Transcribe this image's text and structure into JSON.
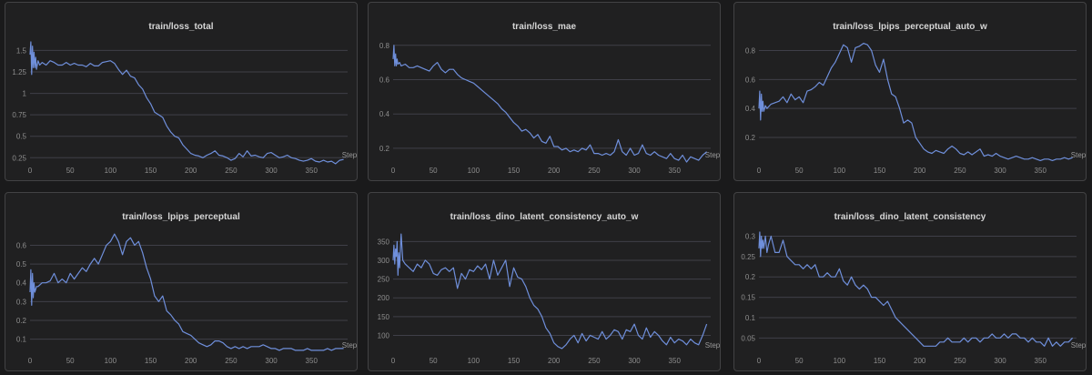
{
  "series_color": "#6f8fdb",
  "chart_data": [
    {
      "type": "line",
      "title": "train/loss_total",
      "xlabel": "Step",
      "xlim": [
        0,
        395
      ],
      "ylim": [
        0.2,
        1.6
      ],
      "xticks": [
        0,
        50,
        100,
        150,
        200,
        250,
        300,
        350
      ],
      "yticks": [
        0.25,
        0.5,
        0.75,
        1,
        1.25,
        1.5
      ],
      "ytick_labels": [
        "0.25",
        "0.5",
        "0.75",
        "1",
        "1.25",
        "1.5"
      ],
      "grid": true,
      "x": [
        0,
        1,
        2,
        3,
        4,
        5,
        6,
        7,
        8,
        10,
        12,
        15,
        20,
        25,
        30,
        35,
        40,
        45,
        50,
        55,
        60,
        65,
        70,
        75,
        80,
        85,
        90,
        95,
        100,
        105,
        110,
        115,
        120,
        125,
        130,
        135,
        140,
        145,
        150,
        155,
        160,
        165,
        170,
        175,
        180,
        185,
        190,
        195,
        200,
        205,
        210,
        215,
        220,
        225,
        230,
        235,
        240,
        245,
        250,
        255,
        260,
        265,
        270,
        275,
        280,
        285,
        290,
        295,
        300,
        305,
        310,
        315,
        320,
        325,
        330,
        335,
        340,
        345,
        350,
        355,
        360,
        365,
        370,
        375,
        380,
        385,
        390
      ],
      "y": [
        1.45,
        1.6,
        1.22,
        1.55,
        1.3,
        1.48,
        1.3,
        1.42,
        1.28,
        1.38,
        1.33,
        1.36,
        1.33,
        1.38,
        1.36,
        1.33,
        1.33,
        1.36,
        1.33,
        1.35,
        1.33,
        1.33,
        1.31,
        1.35,
        1.32,
        1.32,
        1.36,
        1.37,
        1.38,
        1.35,
        1.28,
        1.22,
        1.27,
        1.2,
        1.18,
        1.1,
        1.05,
        0.95,
        0.88,
        0.78,
        0.75,
        0.72,
        0.62,
        0.55,
        0.5,
        0.48,
        0.4,
        0.35,
        0.3,
        0.28,
        0.27,
        0.25,
        0.28,
        0.3,
        0.33,
        0.28,
        0.27,
        0.25,
        0.22,
        0.24,
        0.3,
        0.26,
        0.33,
        0.27,
        0.28,
        0.26,
        0.25,
        0.3,
        0.31,
        0.28,
        0.25,
        0.26,
        0.28,
        0.25,
        0.24,
        0.22,
        0.21,
        0.22,
        0.24,
        0.21,
        0.2,
        0.22,
        0.2,
        0.21,
        0.18,
        0.22,
        0.23
      ]
    },
    {
      "type": "line",
      "title": "train/loss_mae",
      "xlabel": "Step",
      "xlim": [
        0,
        395
      ],
      "ylim": [
        0.12,
        0.82
      ],
      "xticks": [
        0,
        50,
        100,
        150,
        200,
        250,
        300,
        350
      ],
      "yticks": [
        0.2,
        0.4,
        0.6,
        0.8
      ],
      "ytick_labels": [
        "0.2",
        "0.4",
        "0.6",
        "0.8"
      ],
      "grid": true,
      "x": [
        0,
        1,
        2,
        3,
        4,
        5,
        6,
        8,
        10,
        15,
        20,
        25,
        30,
        35,
        40,
        45,
        50,
        55,
        60,
        65,
        70,
        75,
        80,
        85,
        90,
        95,
        100,
        105,
        110,
        115,
        120,
        125,
        130,
        135,
        140,
        145,
        150,
        155,
        160,
        165,
        170,
        175,
        180,
        185,
        190,
        195,
        200,
        205,
        210,
        215,
        220,
        225,
        230,
        235,
        240,
        245,
        250,
        255,
        260,
        265,
        270,
        275,
        280,
        285,
        290,
        295,
        300,
        305,
        310,
        315,
        320,
        325,
        330,
        335,
        340,
        345,
        350,
        355,
        360,
        365,
        370,
        375,
        380,
        385,
        390
      ],
      "y": [
        0.72,
        0.8,
        0.68,
        0.75,
        0.68,
        0.72,
        0.69,
        0.7,
        0.68,
        0.69,
        0.67,
        0.67,
        0.68,
        0.67,
        0.66,
        0.65,
        0.68,
        0.7,
        0.66,
        0.64,
        0.66,
        0.66,
        0.63,
        0.61,
        0.6,
        0.59,
        0.58,
        0.56,
        0.54,
        0.52,
        0.5,
        0.48,
        0.46,
        0.43,
        0.41,
        0.38,
        0.35,
        0.33,
        0.3,
        0.31,
        0.29,
        0.26,
        0.28,
        0.24,
        0.23,
        0.27,
        0.21,
        0.21,
        0.19,
        0.2,
        0.18,
        0.19,
        0.18,
        0.2,
        0.19,
        0.22,
        0.17,
        0.17,
        0.16,
        0.17,
        0.16,
        0.18,
        0.25,
        0.18,
        0.16,
        0.2,
        0.16,
        0.17,
        0.22,
        0.17,
        0.16,
        0.18,
        0.16,
        0.15,
        0.14,
        0.17,
        0.14,
        0.13,
        0.16,
        0.12,
        0.15,
        0.14,
        0.13,
        0.16,
        0.18
      ]
    },
    {
      "type": "line",
      "title": "train/loss_lpips_perceptual_auto_w",
      "xlabel": "Step",
      "xlim": [
        0,
        395
      ],
      "ylim": [
        0.03,
        0.86
      ],
      "xticks": [
        0,
        50,
        100,
        150,
        200,
        250,
        300,
        350
      ],
      "yticks": [
        0.2,
        0.4,
        0.6,
        0.8
      ],
      "ytick_labels": [
        "0.2",
        "0.4",
        "0.6",
        "0.8"
      ],
      "grid": true,
      "x": [
        0,
        1,
        2,
        3,
        4,
        5,
        6,
        8,
        10,
        15,
        20,
        25,
        30,
        35,
        40,
        45,
        50,
        55,
        60,
        65,
        70,
        75,
        80,
        85,
        90,
        95,
        100,
        105,
        110,
        115,
        120,
        125,
        130,
        135,
        140,
        145,
        150,
        155,
        160,
        165,
        170,
        175,
        180,
        185,
        190,
        195,
        200,
        205,
        210,
        215,
        220,
        225,
        230,
        235,
        240,
        245,
        250,
        255,
        260,
        265,
        270,
        275,
        280,
        285,
        290,
        295,
        300,
        305,
        310,
        315,
        320,
        325,
        330,
        335,
        340,
        345,
        350,
        355,
        360,
        365,
        370,
        375,
        380,
        385,
        390
      ],
      "y": [
        0.4,
        0.52,
        0.32,
        0.5,
        0.38,
        0.45,
        0.38,
        0.42,
        0.4,
        0.43,
        0.44,
        0.45,
        0.48,
        0.44,
        0.5,
        0.46,
        0.48,
        0.44,
        0.52,
        0.53,
        0.55,
        0.58,
        0.56,
        0.62,
        0.68,
        0.72,
        0.78,
        0.84,
        0.82,
        0.72,
        0.82,
        0.83,
        0.85,
        0.84,
        0.8,
        0.7,
        0.65,
        0.74,
        0.6,
        0.5,
        0.48,
        0.4,
        0.3,
        0.32,
        0.3,
        0.2,
        0.16,
        0.12,
        0.1,
        0.09,
        0.11,
        0.1,
        0.09,
        0.12,
        0.14,
        0.12,
        0.09,
        0.08,
        0.1,
        0.08,
        0.1,
        0.12,
        0.07,
        0.08,
        0.07,
        0.09,
        0.07,
        0.06,
        0.05,
        0.06,
        0.07,
        0.06,
        0.05,
        0.05,
        0.06,
        0.05,
        0.04,
        0.05,
        0.05,
        0.04,
        0.05,
        0.05,
        0.06,
        0.05,
        0.06
      ]
    },
    {
      "type": "line",
      "title": "train/loss_lpips_perceptual",
      "xlabel": "Step",
      "xlim": [
        0,
        395
      ],
      "ylim": [
        0.03,
        0.67
      ],
      "xticks": [
        0,
        50,
        100,
        150,
        200,
        250,
        300,
        350
      ],
      "yticks": [
        0.1,
        0.2,
        0.3,
        0.4,
        0.5,
        0.6
      ],
      "ytick_labels": [
        "0.1",
        "0.2",
        "0.3",
        "0.4",
        "0.5",
        "0.6"
      ],
      "grid": true,
      "x": [
        0,
        1,
        2,
        3,
        4,
        5,
        6,
        8,
        10,
        15,
        20,
        25,
        30,
        35,
        40,
        45,
        50,
        55,
        60,
        65,
        70,
        75,
        80,
        85,
        90,
        95,
        100,
        105,
        110,
        115,
        120,
        125,
        130,
        135,
        140,
        145,
        150,
        155,
        160,
        165,
        170,
        175,
        180,
        185,
        190,
        195,
        200,
        205,
        210,
        215,
        220,
        225,
        230,
        235,
        240,
        245,
        250,
        255,
        260,
        265,
        270,
        275,
        280,
        285,
        290,
        295,
        300,
        305,
        310,
        315,
        320,
        325,
        330,
        335,
        340,
        345,
        350,
        355,
        360,
        365,
        370,
        375,
        380,
        385,
        390
      ],
      "y": [
        0.35,
        0.47,
        0.28,
        0.45,
        0.32,
        0.4,
        0.35,
        0.38,
        0.38,
        0.4,
        0.4,
        0.41,
        0.45,
        0.4,
        0.42,
        0.4,
        0.45,
        0.42,
        0.45,
        0.48,
        0.46,
        0.5,
        0.53,
        0.5,
        0.55,
        0.6,
        0.62,
        0.66,
        0.62,
        0.55,
        0.62,
        0.64,
        0.6,
        0.62,
        0.56,
        0.48,
        0.42,
        0.33,
        0.3,
        0.33,
        0.25,
        0.23,
        0.2,
        0.18,
        0.14,
        0.13,
        0.12,
        0.1,
        0.08,
        0.07,
        0.06,
        0.07,
        0.09,
        0.09,
        0.08,
        0.06,
        0.05,
        0.06,
        0.05,
        0.06,
        0.05,
        0.06,
        0.06,
        0.06,
        0.07,
        0.06,
        0.05,
        0.05,
        0.04,
        0.05,
        0.05,
        0.05,
        0.04,
        0.04,
        0.04,
        0.05,
        0.04,
        0.04,
        0.04,
        0.04,
        0.05,
        0.04,
        0.05,
        0.05,
        0.05
      ]
    },
    {
      "type": "line",
      "title": "train/loss_dino_latent_consistency_auto_w",
      "xlabel": "Step",
      "xlim": [
        0,
        395
      ],
      "ylim": [
        55,
        375
      ],
      "xticks": [
        0,
        50,
        100,
        150,
        200,
        250,
        300,
        350
      ],
      "yticks": [
        100,
        150,
        200,
        250,
        300,
        350
      ],
      "ytick_labels": [
        "100",
        "150",
        "200",
        "250",
        "300",
        "350"
      ],
      "grid": true,
      "x": [
        0,
        1,
        2,
        3,
        4,
        5,
        6,
        7,
        8,
        10,
        12,
        15,
        20,
        25,
        30,
        35,
        40,
        45,
        50,
        55,
        60,
        65,
        70,
        75,
        80,
        85,
        90,
        95,
        100,
        105,
        110,
        115,
        120,
        125,
        130,
        135,
        140,
        145,
        150,
        155,
        160,
        165,
        170,
        175,
        180,
        185,
        190,
        195,
        200,
        205,
        210,
        215,
        220,
        225,
        230,
        235,
        240,
        245,
        250,
        255,
        260,
        265,
        270,
        275,
        280,
        285,
        290,
        295,
        300,
        305,
        310,
        315,
        320,
        325,
        330,
        335,
        340,
        345,
        350,
        355,
        360,
        365,
        370,
        375,
        380,
        385,
        390
      ],
      "y": [
        300,
        340,
        290,
        330,
        310,
        350,
        260,
        320,
        280,
        370,
        300,
        290,
        280,
        270,
        290,
        280,
        300,
        290,
        265,
        260,
        275,
        280,
        270,
        280,
        225,
        265,
        250,
        275,
        270,
        285,
        275,
        290,
        250,
        300,
        260,
        280,
        300,
        230,
        280,
        255,
        250,
        230,
        200,
        180,
        170,
        150,
        120,
        105,
        80,
        70,
        65,
        75,
        90,
        100,
        80,
        105,
        85,
        100,
        95,
        90,
        110,
        90,
        100,
        115,
        110,
        90,
        115,
        110,
        130,
        100,
        90,
        120,
        95,
        110,
        100,
        85,
        75,
        95,
        80,
        90,
        85,
        75,
        90,
        80,
        75,
        100,
        130
      ]
    },
    {
      "type": "line",
      "title": "train/loss_dino_latent_consistency",
      "xlabel": "Step",
      "xlim": [
        0,
        395
      ],
      "ylim": [
        0.015,
        0.31
      ],
      "xticks": [
        0,
        50,
        100,
        150,
        200,
        250,
        300,
        350
      ],
      "yticks": [
        0.05,
        0.1,
        0.15,
        0.2,
        0.25,
        0.3
      ],
      "ytick_labels": [
        "0.05",
        "0.1",
        "0.15",
        "0.2",
        "0.25",
        "0.3"
      ],
      "grid": true,
      "x": [
        0,
        1,
        2,
        3,
        4,
        5,
        6,
        8,
        10,
        12,
        15,
        20,
        25,
        30,
        35,
        40,
        45,
        50,
        55,
        60,
        65,
        70,
        75,
        80,
        85,
        90,
        95,
        100,
        105,
        110,
        115,
        120,
        125,
        130,
        135,
        140,
        145,
        150,
        155,
        160,
        165,
        170,
        175,
        180,
        185,
        190,
        195,
        200,
        205,
        210,
        215,
        220,
        225,
        230,
        235,
        240,
        245,
        250,
        255,
        260,
        265,
        270,
        275,
        280,
        285,
        290,
        295,
        300,
        305,
        310,
        315,
        320,
        325,
        330,
        335,
        340,
        345,
        350,
        355,
        360,
        365,
        370,
        375,
        380,
        385,
        390
      ],
      "y": [
        0.27,
        0.31,
        0.25,
        0.3,
        0.27,
        0.29,
        0.27,
        0.3,
        0.26,
        0.28,
        0.3,
        0.26,
        0.26,
        0.29,
        0.25,
        0.24,
        0.23,
        0.23,
        0.22,
        0.23,
        0.22,
        0.23,
        0.2,
        0.2,
        0.21,
        0.2,
        0.2,
        0.22,
        0.19,
        0.18,
        0.2,
        0.18,
        0.17,
        0.18,
        0.17,
        0.15,
        0.15,
        0.14,
        0.13,
        0.14,
        0.12,
        0.1,
        0.09,
        0.08,
        0.07,
        0.06,
        0.05,
        0.04,
        0.03,
        0.03,
        0.03,
        0.03,
        0.04,
        0.04,
        0.05,
        0.04,
        0.04,
        0.04,
        0.05,
        0.04,
        0.05,
        0.05,
        0.04,
        0.05,
        0.05,
        0.06,
        0.05,
        0.05,
        0.06,
        0.05,
        0.06,
        0.06,
        0.05,
        0.05,
        0.04,
        0.05,
        0.04,
        0.04,
        0.03,
        0.05,
        0.03,
        0.04,
        0.03,
        0.04,
        0.04,
        0.05
      ]
    }
  ]
}
